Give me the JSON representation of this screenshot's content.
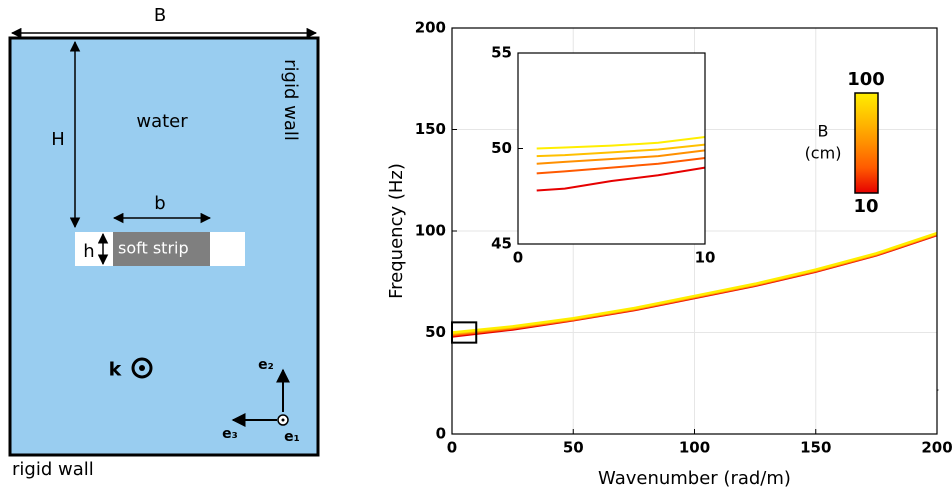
{
  "diagram": {
    "B": "B",
    "H": "H",
    "water": "water",
    "rigid_wall_right": "rigid wall",
    "b": "b",
    "h": "h",
    "strip": "soft strip",
    "k": "k",
    "e2": "e₂",
    "e3": "e₃",
    "e1": "e₁",
    "rigid_wall_bottom": "rigid wall"
  },
  "chart_data": [
    {
      "type": "line",
      "xlabel": "Wavenumber (rad/m)",
      "ylabel": "Frequency (Hz)",
      "x": [
        0,
        25,
        50,
        75,
        100,
        125,
        150,
        175,
        200
      ],
      "series": [
        {
          "color": "#e60000",
          "values": [
            48,
            51.5,
            56,
            61,
            67,
            73,
            80,
            88,
            98
          ]
        },
        {
          "color": "#ff5a00",
          "values": [
            48.7,
            52,
            56.3,
            61.3,
            67.3,
            73.3,
            80.3,
            88.3,
            98.3
          ]
        },
        {
          "color": "#ff9000",
          "values": [
            49.2,
            52.4,
            56.6,
            61.6,
            67.6,
            73.6,
            80.6,
            88.6,
            98.6
          ]
        },
        {
          "color": "#ffc000",
          "values": [
            49.6,
            52.7,
            56.8,
            61.8,
            67.8,
            73.8,
            80.8,
            88.8,
            98.8
          ]
        },
        {
          "color": "#ffee00",
          "values": [
            50,
            53,
            57,
            62,
            68,
            74,
            81,
            89,
            99
          ]
        }
      ],
      "xlim": [
        0,
        200
      ],
      "ylim": [
        0,
        200
      ],
      "xticks": [
        0,
        50,
        100,
        150,
        200
      ],
      "yticks": [
        0,
        50,
        100,
        150,
        200
      ],
      "grid": true,
      "colorbar": {
        "label": [
          "B",
          "(cm)"
        ],
        "ticks": [
          10,
          100
        ],
        "colors": [
          "#e60000",
          "#ff5a00",
          "#ff9000",
          "#ffc000",
          "#ffee00"
        ]
      }
    },
    {
      "type": "line",
      "x": [
        1,
        2.5,
        5,
        7.5,
        10
      ],
      "series": [
        {
          "color": "#e60000",
          "values": [
            47.8,
            47.9,
            48.3,
            48.6,
            49.0
          ]
        },
        {
          "color": "#ff5a00",
          "values": [
            48.7,
            48.8,
            49.0,
            49.2,
            49.5
          ]
        },
        {
          "color": "#ff9000",
          "values": [
            49.2,
            49.3,
            49.45,
            49.6,
            49.9
          ]
        },
        {
          "color": "#ffc000",
          "values": [
            49.6,
            49.65,
            49.8,
            49.95,
            50.2
          ]
        },
        {
          "color": "#ffee00",
          "values": [
            50,
            50.05,
            50.15,
            50.3,
            50.6
          ]
        }
      ],
      "xlim": [
        0,
        10
      ],
      "ylim": [
        45,
        55
      ],
      "xticks": [
        0,
        10
      ],
      "yticks": [
        45,
        50,
        55
      ],
      "grid": false
    }
  ]
}
